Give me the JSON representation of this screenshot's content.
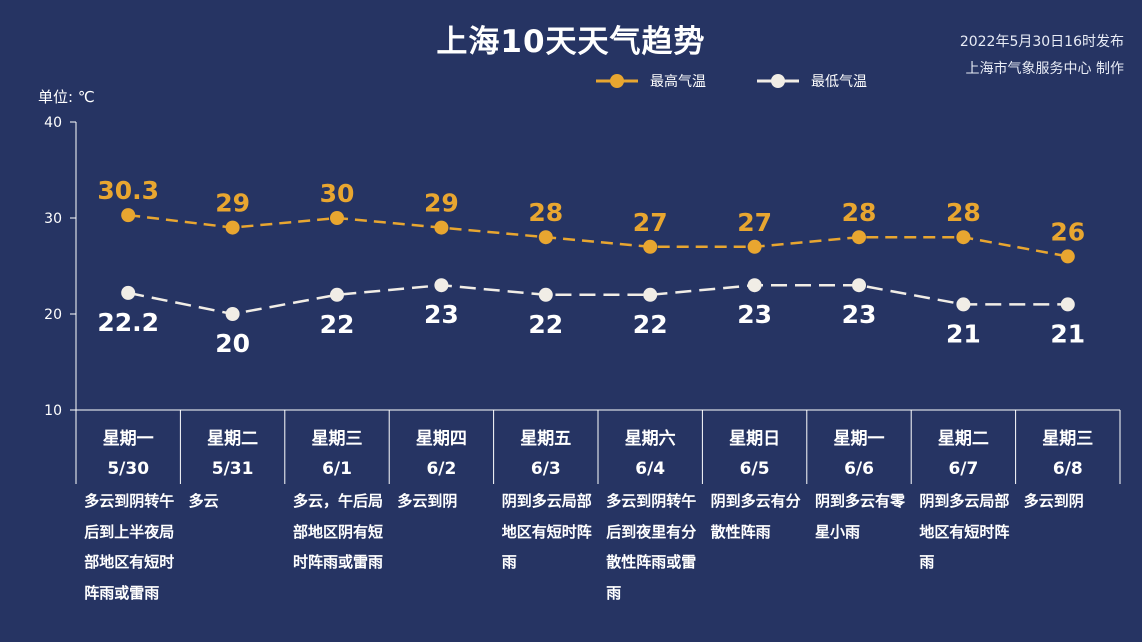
{
  "header": {
    "title": "上海10天天气趋势",
    "issued": "2022年5月30日16时发布",
    "producer": "上海市气象服务中心 制作",
    "unit": "单位: ℃"
  },
  "colors": {
    "background": "#263463",
    "high": "#e8a630",
    "low": "#f1ede6",
    "axis": "#ffffff"
  },
  "chart_data": {
    "type": "line",
    "ylim": [
      10,
      40
    ],
    "yticks": [
      10,
      20,
      30,
      40
    ],
    "series": [
      {
        "name": "最高气温",
        "values": [
          30.3,
          29,
          30,
          29,
          28,
          27,
          27,
          28,
          28,
          26
        ],
        "labels": [
          "30.3",
          "29",
          "30",
          "29",
          "28",
          "27",
          "27",
          "28",
          "28",
          "26"
        ]
      },
      {
        "name": "最低气温",
        "values": [
          22.2,
          20,
          22,
          23,
          22,
          22,
          23,
          23,
          21,
          21
        ],
        "labels": [
          "22.2",
          "20",
          "22",
          "23",
          "22",
          "22",
          "23",
          "23",
          "21",
          "21"
        ]
      }
    ],
    "days": [
      {
        "weekday": "星期一",
        "date": "5/30",
        "condition": "多云到阴转午后到上半夜局部地区有短时阵雨或雷雨"
      },
      {
        "weekday": "星期二",
        "date": "5/31",
        "condition": "多云"
      },
      {
        "weekday": "星期三",
        "date": "6/1",
        "condition": "多云，午后局部地区阴有短时阵雨或雷雨"
      },
      {
        "weekday": "星期四",
        "date": "6/2",
        "condition": "多云到阴"
      },
      {
        "weekday": "星期五",
        "date": "6/3",
        "condition": "阴到多云局部地区有短时阵雨"
      },
      {
        "weekday": "星期六",
        "date": "6/4",
        "condition": "多云到阴转午后到夜里有分散性阵雨或雷雨"
      },
      {
        "weekday": "星期日",
        "date": "6/5",
        "condition": "阴到多云有分散性阵雨"
      },
      {
        "weekday": "星期一",
        "date": "6/6",
        "condition": "阴到多云有零星小雨"
      },
      {
        "weekday": "星期二",
        "date": "6/7",
        "condition": "阴到多云局部地区有短时阵雨"
      },
      {
        "weekday": "星期三",
        "date": "6/8",
        "condition": "多云到阴"
      }
    ]
  }
}
